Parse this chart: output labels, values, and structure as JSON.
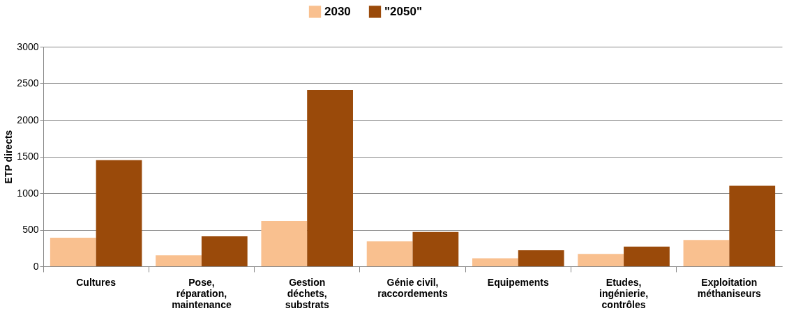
{
  "chart_data": {
    "type": "bar",
    "ylabel": "ETP directs",
    "categories": [
      "Cultures",
      "Pose,\nréparation,\nmaintenance",
      "Gestion\ndéchets,\nsubstrats",
      "Génie civil,\nraccordements",
      "Equipements",
      "Etudes,\ningénierie,\ncontrôles",
      "Exploitation\nméthaniseurs"
    ],
    "series": [
      {
        "name": "2030",
        "color": "#f9c08f",
        "values": [
          390,
          150,
          620,
          340,
          110,
          170,
          360
        ]
      },
      {
        "name": "\"2050\"",
        "color": "#9a4a0a",
        "values": [
          1450,
          410,
          2410,
          470,
          220,
          270,
          1100
        ]
      }
    ],
    "ylim": [
      0,
      3000
    ],
    "yticks": [
      0,
      500,
      1000,
      1500,
      2000,
      2500,
      3000
    ],
    "grid": "y",
    "legend": "top"
  }
}
